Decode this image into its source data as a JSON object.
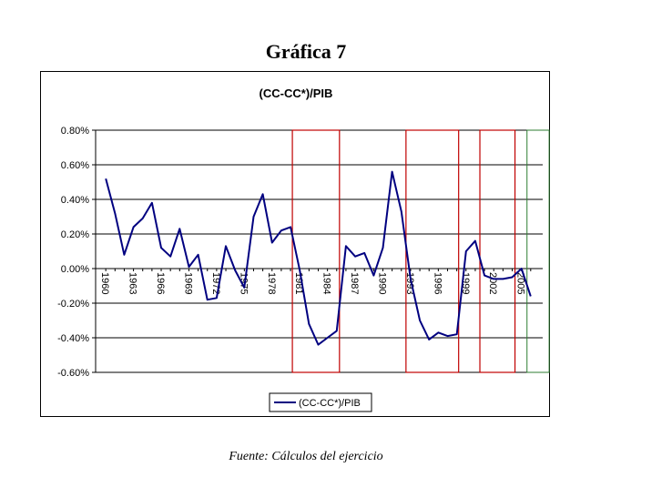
{
  "figure_title": "Gráfica 7",
  "source_note": "Fuente: Cálculos del ejercicio",
  "colors": {
    "series": "#000080",
    "highlight": "#c00000",
    "edge": "#2e7d32",
    "grid": "#000000"
  },
  "chart_data": {
    "type": "line",
    "title": "(CC-CC*)/PIB",
    "xlabel": "",
    "ylabel": "",
    "ylim": [
      -0.006,
      0.008
    ],
    "yticks": [
      "0.80%",
      "0.60%",
      "0.40%",
      "0.20%",
      "0.00%",
      "-0.20%",
      "-0.40%",
      "-0.60%"
    ],
    "ytick_values": [
      0.008,
      0.006,
      0.004,
      0.002,
      0.0,
      -0.002,
      -0.004,
      -0.006
    ],
    "xticks": [
      "1960",
      "1963",
      "1966",
      "1969",
      "1972",
      "1975",
      "1978",
      "1981",
      "1984",
      "1987",
      "1990",
      "1993",
      "1996",
      "1999",
      "2002",
      "2005"
    ],
    "x": [
      1960,
      1961,
      1962,
      1963,
      1964,
      1965,
      1966,
      1967,
      1968,
      1969,
      1970,
      1971,
      1972,
      1973,
      1974,
      1975,
      1976,
      1977,
      1978,
      1979,
      1980,
      1981,
      1982,
      1983,
      1984,
      1985,
      1986,
      1987,
      1988,
      1989,
      1990,
      1991,
      1992,
      1993,
      1994,
      1995,
      1996,
      1997,
      1998,
      1999,
      2000,
      2001,
      2002,
      2003,
      2004,
      2005,
      2006
    ],
    "series": [
      {
        "name": "(CC-CC*)/PIB",
        "values": [
          0.0052,
          0.0032,
          0.0008,
          0.0024,
          0.0029,
          0.0038,
          0.0012,
          0.0007,
          0.0023,
          0.0001,
          0.0008,
          -0.0018,
          -0.0017,
          0.0013,
          -0.0001,
          -0.0011,
          0.003,
          0.0043,
          0.0015,
          0.0022,
          0.0024,
          -0.0001,
          -0.0032,
          -0.0044,
          -0.004,
          -0.0036,
          0.0013,
          0.0007,
          0.0009,
          -0.0004,
          0.0012,
          0.0056,
          0.0033,
          -0.0006,
          -0.003,
          -0.0041,
          -0.0037,
          -0.0039,
          -0.0038,
          0.001,
          0.0016,
          -0.0004,
          -0.0006,
          -0.0006,
          -0.0005,
          0.0,
          -0.0016
        ]
      }
    ],
    "highlight_ranges": [
      [
        1980.2,
        1985.3
      ],
      [
        1992.5,
        1998.2
      ],
      [
        2000.5,
        2004.3
      ]
    ],
    "edge_marker": [
      2005.6,
      2008
    ],
    "grid": true,
    "legend_position": "bottom"
  }
}
